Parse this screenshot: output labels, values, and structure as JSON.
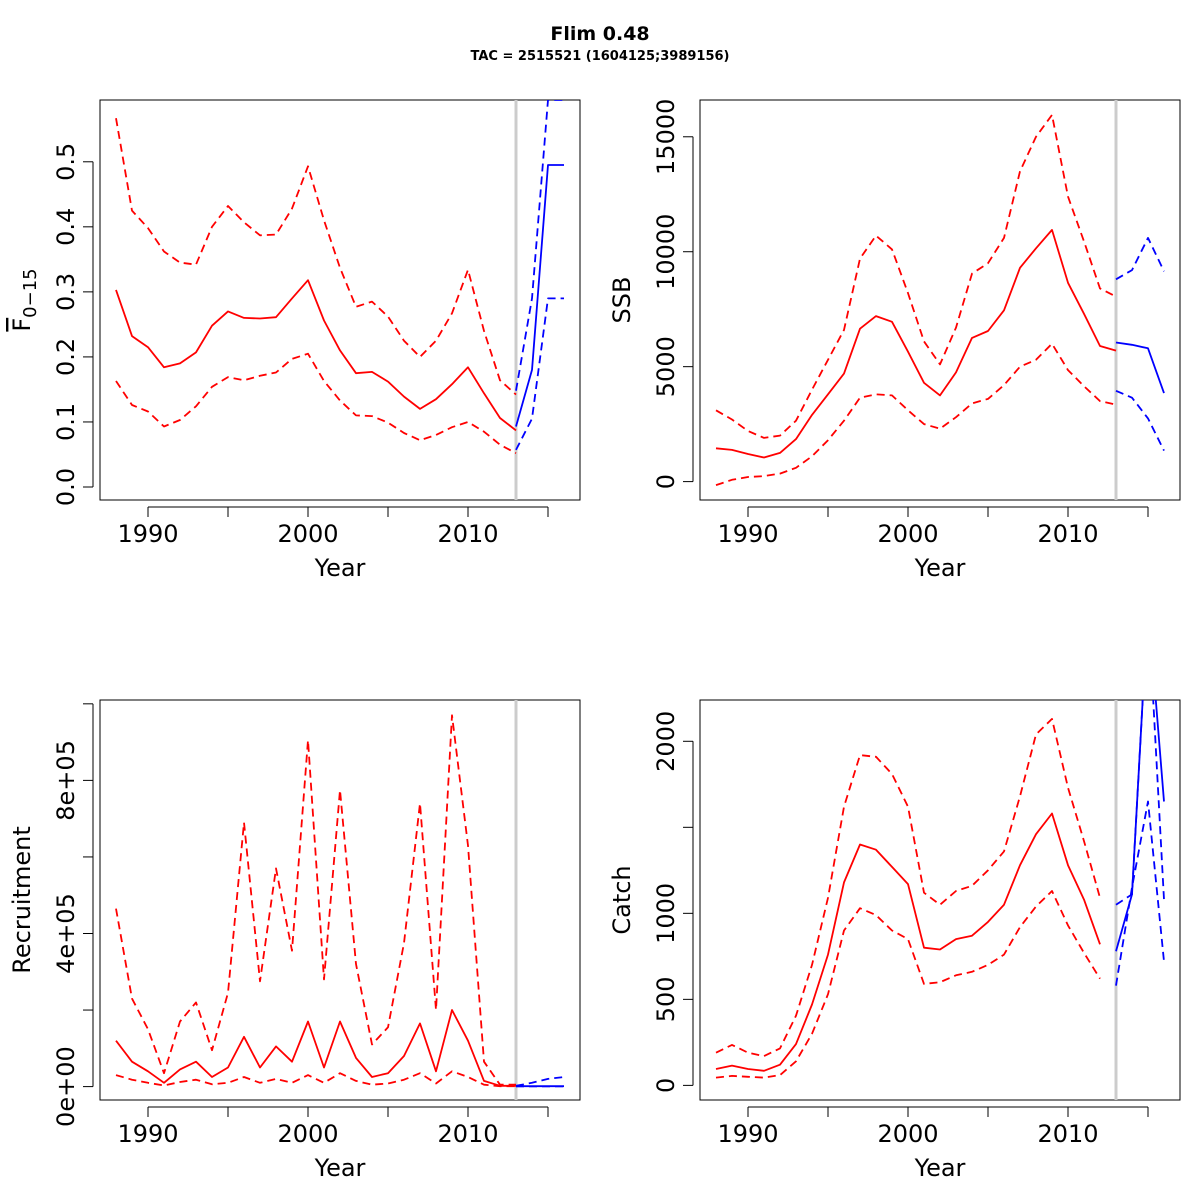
{
  "figure": {
    "title": "Flim 0.48",
    "subtitle": "TAC = 2515521 (1604125;3989156)"
  },
  "colors": {
    "history": "#ff0000",
    "forecast": "#0000ff",
    "divider": "#cccccc"
  },
  "chart_data": [
    {
      "type": "line",
      "panel": "top-left",
      "xlabel": "Year",
      "ylabel_main": "F",
      "ylabel_sub": "0−15",
      "ylabel_overbar": true,
      "xlim": [
        1987,
        2017
      ],
      "ylim": [
        -0.02,
        0.595
      ],
      "xticks": [
        1990,
        2000,
        2010
      ],
      "xticks_minor": [
        1995,
        2005,
        2015
      ],
      "yticks": [
        0.0,
        0.1,
        0.2,
        0.3,
        0.4,
        0.5
      ],
      "ytick_labels": [
        "0.0",
        "0.1",
        "0.2",
        "0.3",
        "0.4",
        "0.5"
      ],
      "divider_x": 2013,
      "series": [
        {
          "role": "history-median",
          "dash": false,
          "x": [
            1988,
            1989,
            1990,
            1991,
            1992,
            1993,
            1994,
            1995,
            1996,
            1997,
            1998,
            1999,
            2000,
            2001,
            2002,
            2003,
            2004,
            2005,
            2006,
            2007,
            2008,
            2009,
            2010,
            2011,
            2012,
            2013
          ],
          "y": [
            0.303,
            0.232,
            0.215,
            0.184,
            0.19,
            0.207,
            0.248,
            0.27,
            0.26,
            0.259,
            0.261,
            0.29,
            0.318,
            0.256,
            0.21,
            0.175,
            0.177,
            0.162,
            0.139,
            0.12,
            0.135,
            0.158,
            0.184,
            0.144,
            0.106,
            0.087
          ]
        },
        {
          "role": "history-upper",
          "dash": true,
          "x": [
            1988,
            1989,
            1990,
            1991,
            1992,
            1993,
            1994,
            1995,
            1996,
            1997,
            1998,
            1999,
            2000,
            2001,
            2002,
            2003,
            2004,
            2005,
            2006,
            2007,
            2008,
            2009,
            2010,
            2011,
            2012,
            2013
          ],
          "y": [
            0.567,
            0.425,
            0.398,
            0.362,
            0.345,
            0.342,
            0.4,
            0.432,
            0.407,
            0.387,
            0.388,
            0.428,
            0.493,
            0.41,
            0.337,
            0.277,
            0.285,
            0.262,
            0.225,
            0.2,
            0.225,
            0.267,
            0.334,
            0.24,
            0.164,
            0.142
          ]
        },
        {
          "role": "history-lower",
          "dash": true,
          "x": [
            1988,
            1989,
            1990,
            1991,
            1992,
            1993,
            1994,
            1995,
            1996,
            1997,
            1998,
            1999,
            2000,
            2001,
            2002,
            2003,
            2004,
            2005,
            2006,
            2007,
            2008,
            2009,
            2010,
            2011,
            2012,
            2013
          ],
          "y": [
            0.163,
            0.126,
            0.116,
            0.093,
            0.103,
            0.124,
            0.154,
            0.169,
            0.164,
            0.171,
            0.176,
            0.197,
            0.205,
            0.163,
            0.133,
            0.11,
            0.109,
            0.099,
            0.083,
            0.072,
            0.08,
            0.092,
            0.1,
            0.085,
            0.065,
            0.052
          ]
        },
        {
          "role": "forecast-median",
          "dash": false,
          "x": [
            2013,
            2014,
            2015,
            2016
          ],
          "y": [
            0.093,
            0.18,
            0.495,
            0.495
          ]
        },
        {
          "role": "forecast-upper",
          "dash": true,
          "x": [
            2013,
            2014,
            2015,
            2016
          ],
          "y": [
            0.148,
            0.29,
            0.595,
            0.595
          ]
        },
        {
          "role": "forecast-lower",
          "dash": true,
          "x": [
            2013,
            2014,
            2015,
            2016
          ],
          "y": [
            0.057,
            0.105,
            0.29,
            0.29
          ]
        }
      ]
    },
    {
      "type": "line",
      "panel": "top-right",
      "xlabel": "Year",
      "ylabel_main": "SSB",
      "xlim": [
        1987,
        2017
      ],
      "ylim": [
        -800,
        16600
      ],
      "xticks": [
        1990,
        2000,
        2010
      ],
      "xticks_minor": [
        1995,
        2005,
        2015
      ],
      "yticks": [
        0,
        5000,
        10000,
        15000
      ],
      "ytick_labels": [
        "0",
        "5000",
        "10000",
        "15000"
      ],
      "divider_x": 2013,
      "series": [
        {
          "role": "history-median",
          "dash": false,
          "x": [
            1988,
            1989,
            1990,
            1991,
            1992,
            1993,
            1994,
            1995,
            1996,
            1997,
            1998,
            1999,
            2000,
            2001,
            2002,
            2003,
            2004,
            2005,
            2006,
            2007,
            2008,
            2009,
            2010,
            2011,
            2012,
            2013
          ],
          "y": [
            1450,
            1380,
            1200,
            1050,
            1250,
            1850,
            2900,
            3800,
            4700,
            6650,
            7200,
            6950,
            5650,
            4300,
            3750,
            4750,
            6250,
            6550,
            7450,
            9300,
            10150,
            10950,
            8650,
            7300,
            5900,
            5700
          ]
        },
        {
          "role": "history-upper",
          "dash": true,
          "x": [
            1988,
            1989,
            1990,
            1991,
            1992,
            1993,
            1994,
            1995,
            1996,
            1997,
            1998,
            1999,
            2000,
            2001,
            2002,
            2003,
            2004,
            2005,
            2006,
            2007,
            2008,
            2009,
            2010,
            2011,
            2012,
            2013
          ],
          "y": [
            3100,
            2700,
            2200,
            1900,
            2000,
            2650,
            4000,
            5300,
            6600,
            9700,
            10700,
            10100,
            8200,
            6100,
            5100,
            6700,
            9050,
            9500,
            10600,
            13500,
            15000,
            15950,
            12400,
            10450,
            8400,
            8050
          ]
        },
        {
          "role": "history-lower",
          "dash": true,
          "x": [
            1988,
            1989,
            1990,
            1991,
            1992,
            1993,
            1994,
            1995,
            1996,
            1997,
            1998,
            1999,
            2000,
            2001,
            2002,
            2003,
            2004,
            2005,
            2006,
            2007,
            2008,
            2009,
            2010,
            2011,
            2012,
            2013
          ],
          "y": [
            -150,
            80,
            200,
            240,
            350,
            600,
            1100,
            1800,
            2650,
            3650,
            3800,
            3750,
            3100,
            2500,
            2300,
            2800,
            3400,
            3600,
            4200,
            5000,
            5300,
            6000,
            4850,
            4150,
            3500,
            3350
          ]
        },
        {
          "role": "forecast-median",
          "dash": false,
          "x": [
            2013,
            2014,
            2015,
            2016
          ],
          "y": [
            6050,
            5950,
            5800,
            3850
          ]
        },
        {
          "role": "forecast-upper",
          "dash": true,
          "x": [
            2013,
            2014,
            2015,
            2016
          ],
          "y": [
            8800,
            9200,
            10600,
            9150
          ]
        },
        {
          "role": "forecast-lower",
          "dash": true,
          "x": [
            2013,
            2014,
            2015,
            2016
          ],
          "y": [
            3950,
            3650,
            2750,
            1350
          ]
        }
      ]
    },
    {
      "type": "line",
      "panel": "bottom-left",
      "xlabel": "Year",
      "ylabel_main": "Recruitment",
      "xlim": [
        1987,
        2017
      ],
      "ylim": [
        -35000,
        1010000
      ],
      "xticks": [
        1990,
        2000,
        2010
      ],
      "xticks_minor": [
        1995,
        2005,
        2015
      ],
      "yticks": [
        0,
        400000,
        800000
      ],
      "ytick_labels": [
        "0e+00",
        "4e+05",
        "8e+05"
      ],
      "yticks_minor": [
        200000,
        600000,
        1000000
      ],
      "divider_x": 2013,
      "series": [
        {
          "role": "history-median",
          "dash": false,
          "x": [
            1988,
            1989,
            1990,
            1991,
            1992,
            1993,
            1994,
            1995,
            1996,
            1997,
            1998,
            1999,
            2000,
            2001,
            2002,
            2003,
            2004,
            2005,
            2006,
            2007,
            2008,
            2009,
            2010,
            2011,
            2012,
            2013
          ],
          "y": [
            120000,
            65000,
            40000,
            10000,
            45000,
            65000,
            25000,
            50000,
            130000,
            50000,
            105000,
            65000,
            170000,
            50000,
            170000,
            75000,
            25000,
            35000,
            80000,
            165000,
            40000,
            200000,
            120000,
            15000,
            2000,
            2000
          ]
        },
        {
          "role": "history-upper",
          "dash": true,
          "x": [
            1988,
            1989,
            1990,
            1991,
            1992,
            1993,
            1994,
            1995,
            1996,
            1997,
            1998,
            1999,
            2000,
            2001,
            2002,
            2003,
            2004,
            2005,
            2006,
            2007,
            2008,
            2009,
            2010,
            2011,
            2012,
            2013
          ],
          "y": [
            465000,
            230000,
            150000,
            35000,
            170000,
            220000,
            95000,
            245000,
            690000,
            275000,
            570000,
            355000,
            905000,
            280000,
            775000,
            320000,
            110000,
            155000,
            375000,
            740000,
            200000,
            970000,
            630000,
            65000,
            5000,
            5000
          ]
        },
        {
          "role": "history-lower",
          "dash": true,
          "x": [
            1988,
            1989,
            1990,
            1991,
            1992,
            1993,
            1994,
            1995,
            1996,
            1997,
            1998,
            1999,
            2000,
            2001,
            2002,
            2003,
            2004,
            2005,
            2006,
            2007,
            2008,
            2009,
            2010,
            2011,
            2012,
            2013
          ],
          "y": [
            30000,
            18000,
            10000,
            3000,
            12000,
            18000,
            6000,
            10000,
            25000,
            10000,
            20000,
            10000,
            30000,
            10000,
            35000,
            15000,
            5000,
            8000,
            18000,
            35000,
            8000,
            40000,
            25000,
            5000,
            1000,
            1000
          ]
        },
        {
          "role": "forecast-median",
          "dash": false,
          "x": [
            2013,
            2014,
            2015,
            2016
          ],
          "y": [
            1000,
            1000,
            1000,
            1000
          ]
        },
        {
          "role": "forecast-upper",
          "dash": true,
          "x": [
            2013,
            2014,
            2015,
            2016
          ],
          "y": [
            2000,
            10000,
            20000,
            25000
          ]
        },
        {
          "role": "forecast-lower",
          "dash": true,
          "x": [
            2013,
            2014,
            2015,
            2016
          ],
          "y": [
            500,
            500,
            500,
            500
          ]
        }
      ]
    },
    {
      "type": "line",
      "panel": "bottom-right",
      "xlabel": "Year",
      "ylabel_main": "Catch",
      "xlim": [
        1987,
        2017
      ],
      "ylim": [
        -85,
        2240
      ],
      "xticks": [
        1990,
        2000,
        2010
      ],
      "xticks_minor": [
        1995,
        2005,
        2015
      ],
      "yticks": [
        0,
        500,
        1000,
        2000
      ],
      "ytick_labels": [
        "0",
        "500",
        "1000",
        "2000"
      ],
      "yticks_minor": [
        1500
      ],
      "divider_x": 2013,
      "series": [
        {
          "role": "history-median",
          "dash": false,
          "x": [
            1988,
            1989,
            1990,
            1991,
            1992,
            1993,
            1994,
            1995,
            1996,
            1997,
            1998,
            1999,
            2000,
            2001,
            2002,
            2003,
            2004,
            2005,
            2006,
            2007,
            2008,
            2009,
            2010,
            2011,
            2012
          ],
          "y": [
            95,
            115,
            95,
            85,
            120,
            240,
            470,
            760,
            1180,
            1400,
            1370,
            1270,
            1170,
            800,
            790,
            850,
            870,
            950,
            1050,
            1280,
            1460,
            1580,
            1280,
            1080,
            820
          ]
        },
        {
          "role": "history-upper",
          "dash": true,
          "x": [
            1988,
            1989,
            1990,
            1991,
            1992,
            1993,
            1994,
            1995,
            1996,
            1997,
            1998,
            1999,
            2000,
            2001,
            2002,
            2003,
            2004,
            2005,
            2006,
            2007,
            2008,
            2009,
            2010,
            2011,
            2012
          ],
          "y": [
            190,
            235,
            190,
            170,
            215,
            405,
            700,
            1090,
            1620,
            1920,
            1910,
            1810,
            1620,
            1120,
            1050,
            1130,
            1160,
            1250,
            1360,
            1680,
            2040,
            2130,
            1730,
            1420,
            1090
          ]
        },
        {
          "role": "history-lower",
          "dash": true,
          "x": [
            1988,
            1989,
            1990,
            1991,
            1992,
            1993,
            1994,
            1995,
            1996,
            1997,
            1998,
            1999,
            2000,
            2001,
            2002,
            2003,
            2004,
            2005,
            2006,
            2007,
            2008,
            2009,
            2010,
            2011,
            2012
          ],
          "y": [
            45,
            55,
            50,
            45,
            60,
            140,
            300,
            530,
            900,
            1030,
            990,
            900,
            850,
            590,
            600,
            640,
            660,
            700,
            760,
            920,
            1040,
            1130,
            930,
            770,
            620
          ]
        },
        {
          "role": "forecast-median",
          "dash": false,
          "x": [
            2013,
            2014,
            2015,
            2016
          ],
          "y": [
            780,
            1110,
            2800,
            1650
          ]
        },
        {
          "role": "forecast-upper",
          "dash": true,
          "x": [
            2013,
            2014,
            2015,
            2016
          ],
          "y": [
            1050,
            1110,
            2800,
            1080
          ]
        },
        {
          "role": "forecast-lower",
          "dash": true,
          "x": [
            2013,
            2014,
            2015,
            2016
          ],
          "y": [
            580,
            1150,
            1650,
            720
          ]
        }
      ]
    }
  ]
}
